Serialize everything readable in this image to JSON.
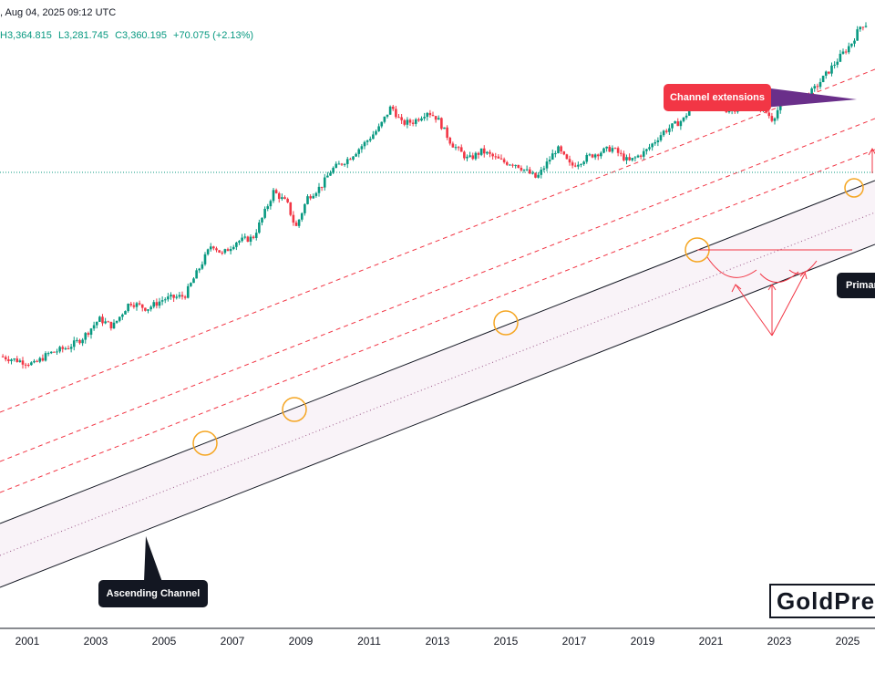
{
  "header": {
    "date_line": ", Aug 04, 2025 09:12 UTC",
    "high": "H3,364.815",
    "low": "L3,281.745",
    "close": "C3,360.195",
    "change": "+70.075 (+2.13%)"
  },
  "labels": {
    "channel_extensions": "Channel extensions",
    "ascending_channel": "Ascending Channel",
    "primary": "Primar"
  },
  "brand": "GoldPred",
  "colors": {
    "up": "#089981",
    "down": "#f23645",
    "channel": "#131722",
    "extension": "#f23645",
    "highlight_circle": "#f5a623",
    "current_price_line": "#089981"
  },
  "chart_data": {
    "type": "candlestick",
    "title": "",
    "xlabel": "",
    "ylabel": "",
    "x_ticks": [
      "2001",
      "2003",
      "2005",
      "2007",
      "2009",
      "2011",
      "2013",
      "2015",
      "2017",
      "2019",
      "2021",
      "2023",
      "2025"
    ],
    "xlim": [
      2000.2,
      2025.8
    ],
    "ylim": [
      3.6,
      8.3
    ],
    "y_axis_visible": false,
    "grid": false,
    "y_scale": "log",
    "closes": [
      {
        "x": 2000.2,
        "y": 280
      },
      {
        "x": 2001.2,
        "y": 264
      },
      {
        "x": 2001.6,
        "y": 285
      },
      {
        "x": 2002.2,
        "y": 300
      },
      {
        "x": 2002.6,
        "y": 320
      },
      {
        "x": 2003.1,
        "y": 370
      },
      {
        "x": 2003.5,
        "y": 350
      },
      {
        "x": 2004.0,
        "y": 420
      },
      {
        "x": 2004.5,
        "y": 400
      },
      {
        "x": 2005.0,
        "y": 430
      },
      {
        "x": 2005.6,
        "y": 440
      },
      {
        "x": 2006.1,
        "y": 560
      },
      {
        "x": 2006.4,
        "y": 650
      },
      {
        "x": 2006.7,
        "y": 600
      },
      {
        "x": 2007.1,
        "y": 660
      },
      {
        "x": 2007.6,
        "y": 680
      },
      {
        "x": 2007.9,
        "y": 800
      },
      {
        "x": 2008.2,
        "y": 960
      },
      {
        "x": 2008.6,
        "y": 880
      },
      {
        "x": 2008.85,
        "y": 730
      },
      {
        "x": 2009.2,
        "y": 920
      },
      {
        "x": 2009.6,
        "y": 1000
      },
      {
        "x": 2009.9,
        "y": 1130
      },
      {
        "x": 2010.4,
        "y": 1230
      },
      {
        "x": 2010.9,
        "y": 1390
      },
      {
        "x": 2011.3,
        "y": 1550
      },
      {
        "x": 2011.65,
        "y": 1820
      },
      {
        "x": 2011.95,
        "y": 1600
      },
      {
        "x": 2012.3,
        "y": 1620
      },
      {
        "x": 2012.7,
        "y": 1750
      },
      {
        "x": 2013.0,
        "y": 1660
      },
      {
        "x": 2013.4,
        "y": 1380
      },
      {
        "x": 2013.9,
        "y": 1220
      },
      {
        "x": 2014.3,
        "y": 1300
      },
      {
        "x": 2014.9,
        "y": 1200
      },
      {
        "x": 2015.3,
        "y": 1180
      },
      {
        "x": 2015.9,
        "y": 1060
      },
      {
        "x": 2016.5,
        "y": 1330
      },
      {
        "x": 2016.9,
        "y": 1160
      },
      {
        "x": 2017.5,
        "y": 1260
      },
      {
        "x": 2018.1,
        "y": 1330
      },
      {
        "x": 2018.6,
        "y": 1200
      },
      {
        "x": 2019.1,
        "y": 1300
      },
      {
        "x": 2019.6,
        "y": 1500
      },
      {
        "x": 2020.2,
        "y": 1650
      },
      {
        "x": 2020.6,
        "y": 1970
      },
      {
        "x": 2021.0,
        "y": 1850
      },
      {
        "x": 2021.4,
        "y": 1770
      },
      {
        "x": 2021.9,
        "y": 1800
      },
      {
        "x": 2022.2,
        "y": 1950
      },
      {
        "x": 2022.8,
        "y": 1650
      },
      {
        "x": 2023.2,
        "y": 1980
      },
      {
        "x": 2023.7,
        "y": 1920
      },
      {
        "x": 2024.0,
        "y": 2050
      },
      {
        "x": 2024.4,
        "y": 2330
      },
      {
        "x": 2024.8,
        "y": 2650
      },
      {
        "x": 2025.1,
        "y": 2900
      },
      {
        "x": 2025.4,
        "y": 3350
      },
      {
        "x": 2025.6,
        "y": 3360
      }
    ]
  }
}
